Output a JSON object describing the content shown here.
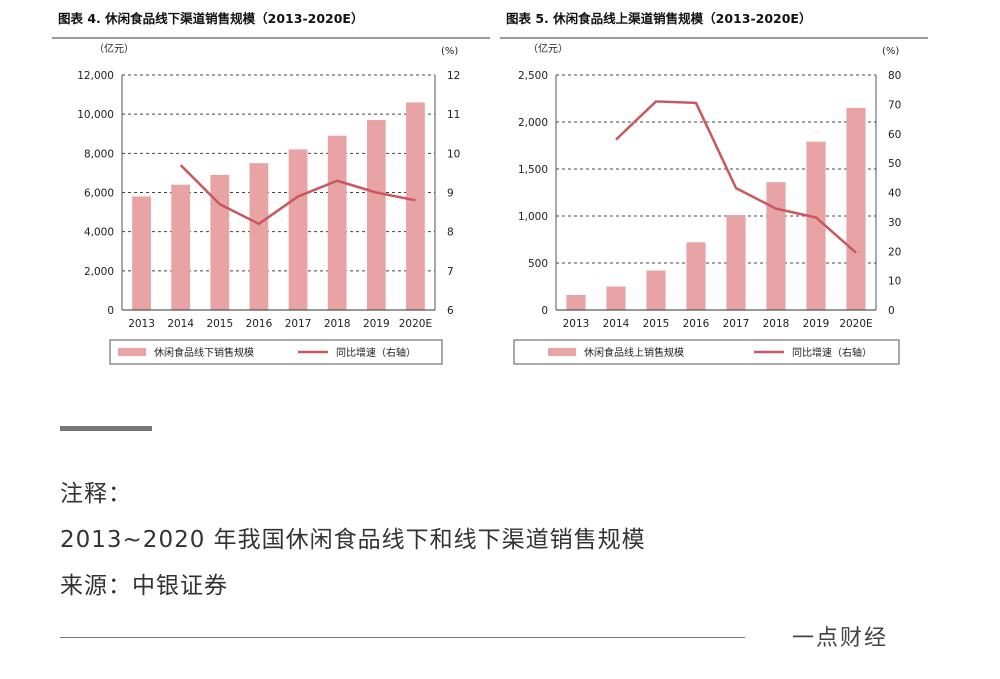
{
  "chart_data": [
    {
      "type": "bar",
      "title": "图表 4. 休闲食品线下渠道销售规模（2013-2020E）",
      "left_unit": "（亿元）",
      "right_unit": "(%)",
      "categories": [
        "2013",
        "2014",
        "2015",
        "2016",
        "2017",
        "2018",
        "2019",
        "2020E"
      ],
      "ylim": [
        0,
        12000
      ],
      "yticks": [
        0,
        2000,
        4000,
        6000,
        8000,
        10000,
        12000
      ],
      "ytick_labels": [
        "0",
        "2,000",
        "4,000",
        "6,000",
        "8,000",
        "10,000",
        "12,000"
      ],
      "y2lim": [
        6,
        12
      ],
      "y2ticks": [
        6,
        7,
        8,
        9,
        10,
        11,
        12
      ],
      "y2tick_labels": [
        "6",
        "7",
        "8",
        "9",
        "10",
        "11",
        "12"
      ],
      "series": [
        {
          "name": "休闲食品线下销售规模",
          "kind": "bar",
          "axis": "left",
          "color": "#e8a4a4",
          "values": [
            5800,
            6400,
            6900,
            7500,
            8200,
            8900,
            9700,
            10600
          ]
        },
        {
          "name": "同比增速（右轴）",
          "kind": "line",
          "axis": "right",
          "color": "#c9585e",
          "values": [
            null,
            9.7,
            8.7,
            8.2,
            8.9,
            9.3,
            9.0,
            8.8
          ]
        }
      ],
      "grid": true,
      "legend": "bottom"
    },
    {
      "type": "bar",
      "title": "图表 5. 休闲食品线上渠道销售规模（2013-2020E）",
      "left_unit": "（亿元）",
      "right_unit": "(%)",
      "categories": [
        "2013",
        "2014",
        "2015",
        "2016",
        "2017",
        "2018",
        "2019",
        "2020E"
      ],
      "ylim": [
        0,
        2500
      ],
      "yticks": [
        0,
        500,
        1000,
        1500,
        2000,
        2500
      ],
      "ytick_labels": [
        "0",
        "500",
        "1,000",
        "1,500",
        "2,000",
        "2,500"
      ],
      "y2lim": [
        0,
        80
      ],
      "y2ticks": [
        0,
        10,
        20,
        30,
        40,
        50,
        60,
        70,
        80
      ],
      "y2tick_labels": [
        "0",
        "10",
        "20",
        "30",
        "40",
        "50",
        "60",
        "70",
        "80"
      ],
      "series": [
        {
          "name": "休闲食品线上销售规模",
          "kind": "bar",
          "axis": "left",
          "color": "#e8a4a4",
          "values": [
            160,
            250,
            420,
            720,
            1010,
            1360,
            1790,
            2150
          ]
        },
        {
          "name": "同比增速（右轴）",
          "kind": "line",
          "axis": "right",
          "color": "#c9585e",
          "values": [
            null,
            58,
            71,
            70.5,
            41.5,
            34.5,
            31.5,
            19.5
          ]
        }
      ],
      "grid": true,
      "legend": "bottom"
    }
  ],
  "notes": {
    "label": "注释：",
    "text": "2013~2020 年我国休闲食品线下和线下渠道销售规模",
    "source": "来源：中银证券"
  },
  "brand": "一点财经"
}
